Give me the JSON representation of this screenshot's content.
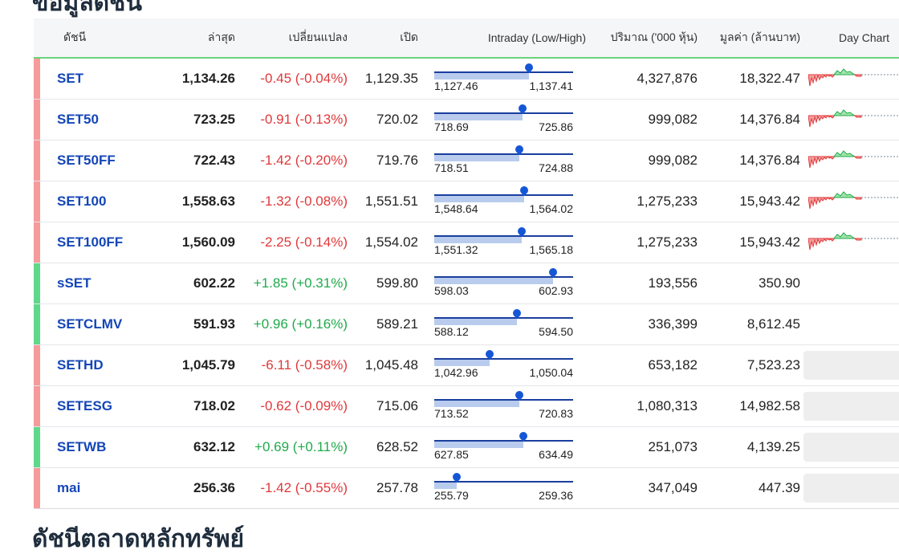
{
  "page": {
    "section_title": "ข้อมูลดัชนี",
    "bottom_title": "ดัชนีตลาดหลักทรัพย์"
  },
  "colors": {
    "negative": "#e0383a",
    "positive": "#1faa4a",
    "link": "#1446b8",
    "strip_neg": "#f69a9a",
    "strip_pos": "#5ed88a"
  },
  "headers": {
    "name": "ดัชนี",
    "last": "ล่าสุด",
    "change": "เปลี่ยนแปลง",
    "open": "เปิด",
    "intraday": "Intraday (Low/High)",
    "volume": "ปริมาณ ('000 หุ้น)",
    "value": "มูลค่า (ล้านบาท)",
    "day_chart": "Day Chart"
  },
  "rows": [
    {
      "name": "SET",
      "last": "1,134.26",
      "change": "-0.45 (-0.04%)",
      "direction": "neg",
      "open": "1,129.35",
      "low": "1,127.46",
      "high": "1,137.41",
      "low_num": 1127.46,
      "high_num": 1137.41,
      "open_num": 1129.35,
      "last_num": 1134.26,
      "volume": "4,327,876",
      "value": "18,322.47",
      "has_chart": true
    },
    {
      "name": "SET50",
      "last": "723.25",
      "change": "-0.91 (-0.13%)",
      "direction": "neg",
      "open": "720.02",
      "low": "718.69",
      "high": "725.86",
      "low_num": 718.69,
      "high_num": 725.86,
      "open_num": 720.02,
      "last_num": 723.25,
      "volume": "999,082",
      "value": "14,376.84",
      "has_chart": true
    },
    {
      "name": "SET50FF",
      "last": "722.43",
      "change": "-1.42 (-0.20%)",
      "direction": "neg",
      "open": "719.76",
      "low": "718.51",
      "high": "724.88",
      "low_num": 718.51,
      "high_num": 724.88,
      "open_num": 719.76,
      "last_num": 722.43,
      "volume": "999,082",
      "value": "14,376.84",
      "has_chart": true
    },
    {
      "name": "SET100",
      "last": "1,558.63",
      "change": "-1.32 (-0.08%)",
      "direction": "neg",
      "open": "1,551.51",
      "low": "1,548.64",
      "high": "1,564.02",
      "low_num": 1548.64,
      "high_num": 1564.02,
      "open_num": 1551.51,
      "last_num": 1558.63,
      "volume": "1,275,233",
      "value": "15,943.42",
      "has_chart": true
    },
    {
      "name": "SET100FF",
      "last": "1,560.09",
      "change": "-2.25 (-0.14%)",
      "direction": "neg",
      "open": "1,554.02",
      "low": "1,551.32",
      "high": "1,565.18",
      "low_num": 1551.32,
      "high_num": 1565.18,
      "open_num": 1554.02,
      "last_num": 1560.09,
      "volume": "1,275,233",
      "value": "15,943.42",
      "has_chart": true
    },
    {
      "name": "sSET",
      "last": "602.22",
      "change": "+1.85 (+0.31%)",
      "direction": "pos",
      "open": "599.80",
      "low": "598.03",
      "high": "602.93",
      "low_num": 598.03,
      "high_num": 602.93,
      "open_num": 599.8,
      "last_num": 602.22,
      "volume": "193,556",
      "value": "350.90",
      "has_chart": false,
      "chart_placeholder": false
    },
    {
      "name": "SETCLMV",
      "last": "591.93",
      "change": "+0.96 (+0.16%)",
      "direction": "pos",
      "open": "589.21",
      "low": "588.12",
      "high": "594.50",
      "low_num": 588.12,
      "high_num": 594.5,
      "open_num": 589.21,
      "last_num": 591.93,
      "volume": "336,399",
      "value": "8,612.45",
      "has_chart": false,
      "chart_placeholder": false
    },
    {
      "name": "SETHD",
      "last": "1,045.79",
      "change": "-6.11 (-0.58%)",
      "direction": "neg",
      "open": "1,045.48",
      "low": "1,042.96",
      "high": "1,050.04",
      "low_num": 1042.96,
      "high_num": 1050.04,
      "open_num": 1045.48,
      "last_num": 1045.79,
      "volume": "653,182",
      "value": "7,523.23",
      "has_chart": false,
      "chart_placeholder": true
    },
    {
      "name": "SETESG",
      "last": "718.02",
      "change": "-0.62 (-0.09%)",
      "direction": "neg",
      "open": "715.06",
      "low": "713.52",
      "high": "720.83",
      "low_num": 713.52,
      "high_num": 720.83,
      "open_num": 715.06,
      "last_num": 718.02,
      "volume": "1,080,313",
      "value": "14,982.58",
      "has_chart": false,
      "chart_placeholder": true
    },
    {
      "name": "SETWB",
      "last": "632.12",
      "change": "+0.69 (+0.11%)",
      "direction": "pos",
      "open": "628.52",
      "low": "627.85",
      "high": "634.49",
      "low_num": 627.85,
      "high_num": 634.49,
      "open_num": 628.52,
      "last_num": 632.12,
      "volume": "251,073",
      "value": "4,139.25",
      "has_chart": false,
      "chart_placeholder": true
    },
    {
      "name": "mai",
      "last": "256.36",
      "change": "-1.42 (-0.55%)",
      "direction": "neg",
      "open": "257.78",
      "low": "255.79",
      "high": "259.36",
      "low_num": 255.79,
      "high_num": 259.36,
      "open_num": 257.78,
      "last_num": 256.36,
      "volume": "347,049",
      "value": "447.39",
      "has_chart": false,
      "chart_placeholder": true
    }
  ]
}
